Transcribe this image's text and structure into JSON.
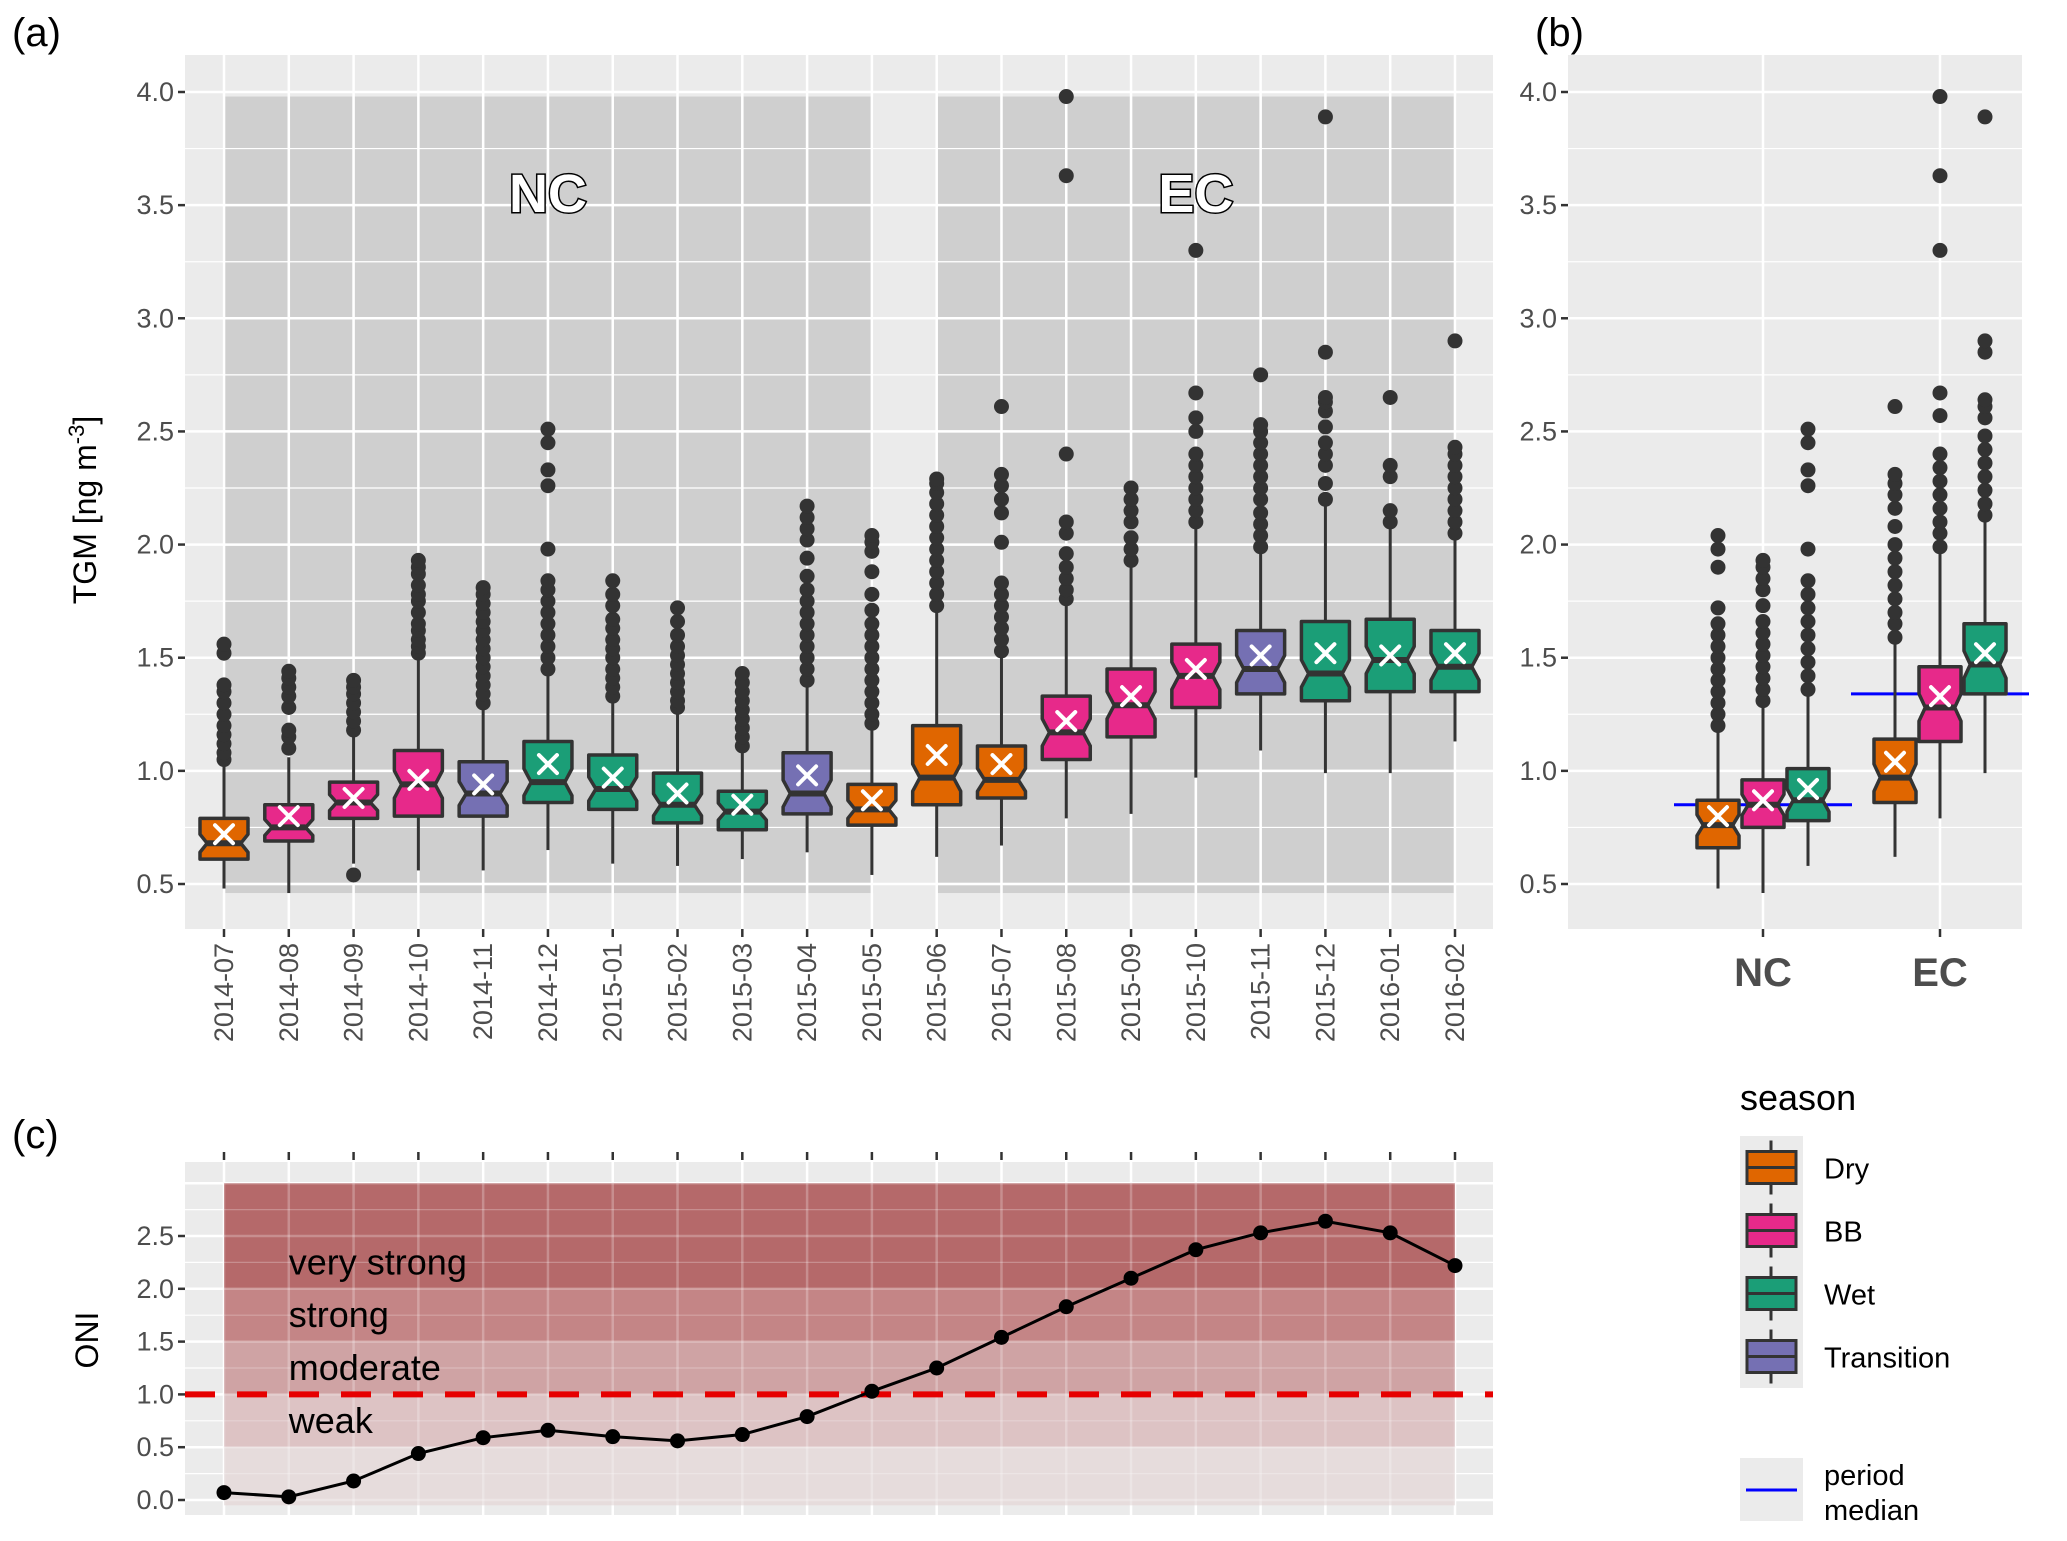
{
  "figure": {
    "panel_a_label": "(a)",
    "panel_b_label": "(b)",
    "panel_c_label": "(c)"
  },
  "colors": {
    "Dry": "#E06600",
    "BB": "#E7298A",
    "Wet": "#1B9E77",
    "Transition": "#7570B3",
    "panel_bg": "#EBEBEB",
    "period_shade": "#CFCFCF",
    "grid": "#FFFFFF",
    "outlier": "#333333",
    "mean_marker": "#FFFFFF",
    "period_median": "#0000FF",
    "threshold_line": "#E60000",
    "oni_line": "#000000",
    "band_very_strong": "#B5696A",
    "band_strong": "#C48586",
    "band_moderate": "#CFA3A4",
    "band_weak": "#DDC3C4",
    "band_base": "#E6DCDC"
  },
  "chart_data": [
    {
      "id": "a",
      "type": "boxplot",
      "notched": true,
      "title": "",
      "xlabel": "",
      "ylabel": "TGM [ng m",
      "ylabel_superscript": "-3",
      "ylabel_suffix": "]",
      "ylim": [
        0.33,
        4.16
      ],
      "yticks": [
        0.5,
        1.0,
        1.5,
        2.0,
        2.5,
        3.0,
        3.5,
        4.0
      ],
      "ytick_labels": [
        "0.5",
        "1.0",
        "1.5",
        "2.0",
        "2.5",
        "3.0",
        "3.5",
        "4.0"
      ],
      "periods": [
        {
          "label": "NC",
          "from": "2014-07",
          "to": "2015-05",
          "ymin": 0.46,
          "ymax": 3.98
        },
        {
          "label": "EC",
          "from": "2015-06",
          "to": "2016-02",
          "ymin": 0.46,
          "ymax": 3.98
        }
      ],
      "categories": [
        "2014-07",
        "2014-08",
        "2014-09",
        "2014-10",
        "2014-11",
        "2014-12",
        "2015-01",
        "2015-02",
        "2015-03",
        "2015-04",
        "2015-05",
        "2015-06",
        "2015-07",
        "2015-08",
        "2015-09",
        "2015-10",
        "2015-11",
        "2015-12",
        "2016-01",
        "2016-02"
      ],
      "boxes": [
        {
          "season": "Dry",
          "wlo": 0.48,
          "q1": 0.61,
          "med": 0.68,
          "q3": 0.79,
          "whi": 1.03,
          "mean": 0.72,
          "outliers": [
            1.05,
            1.08,
            1.12,
            1.16,
            1.2,
            1.25,
            1.3,
            1.35,
            1.38,
            1.52,
            1.56
          ]
        },
        {
          "season": "BB",
          "wlo": 0.46,
          "q1": 0.69,
          "med": 0.75,
          "q3": 0.85,
          "whi": 1.06,
          "mean": 0.8,
          "outliers": [
            1.1,
            1.15,
            1.18,
            1.28,
            1.33,
            1.37,
            1.41,
            1.44
          ]
        },
        {
          "season": "BB",
          "wlo": 0.59,
          "q1": 0.79,
          "med": 0.86,
          "q3": 0.95,
          "whi": 1.15,
          "mean": 0.88,
          "outliers": [
            0.54,
            1.18,
            1.22,
            1.26,
            1.3,
            1.34,
            1.37,
            1.4
          ]
        },
        {
          "season": "BB",
          "wlo": 0.56,
          "q1": 0.8,
          "med": 0.94,
          "q3": 1.09,
          "whi": 1.5,
          "mean": 0.96,
          "outliers": [
            1.52,
            1.55,
            1.58,
            1.62,
            1.65,
            1.7,
            1.75,
            1.78,
            1.82,
            1.87,
            1.9,
            1.93
          ]
        },
        {
          "season": "Transition",
          "wlo": 0.56,
          "q1": 0.8,
          "med": 0.9,
          "q3": 1.04,
          "whi": 1.27,
          "mean": 0.94,
          "outliers": [
            1.3,
            1.34,
            1.38,
            1.42,
            1.46,
            1.5,
            1.54,
            1.58,
            1.62,
            1.66,
            1.7,
            1.74,
            1.78,
            1.81
          ]
        },
        {
          "season": "Wet",
          "wlo": 0.65,
          "q1": 0.86,
          "med": 0.95,
          "q3": 1.13,
          "whi": 1.42,
          "mean": 1.03,
          "outliers": [
            1.45,
            1.5,
            1.55,
            1.6,
            1.65,
            1.7,
            1.75,
            1.8,
            1.84,
            1.98,
            2.26,
            2.33,
            2.45,
            2.51
          ]
        },
        {
          "season": "Wet",
          "wlo": 0.59,
          "q1": 0.83,
          "med": 0.92,
          "q3": 1.07,
          "whi": 1.3,
          "mean": 0.97,
          "outliers": [
            1.33,
            1.37,
            1.41,
            1.45,
            1.5,
            1.54,
            1.58,
            1.63,
            1.67,
            1.73,
            1.78,
            1.84
          ]
        },
        {
          "season": "Wet",
          "wlo": 0.58,
          "q1": 0.77,
          "med": 0.85,
          "q3": 0.99,
          "whi": 1.25,
          "mean": 0.9,
          "outliers": [
            1.28,
            1.31,
            1.35,
            1.39,
            1.43,
            1.47,
            1.51,
            1.55,
            1.6,
            1.66,
            1.72
          ]
        },
        {
          "season": "Wet",
          "wlo": 0.61,
          "q1": 0.74,
          "med": 0.82,
          "q3": 0.91,
          "whi": 1.08,
          "mean": 0.85,
          "outliers": [
            1.11,
            1.15,
            1.19,
            1.23,
            1.27,
            1.31,
            1.35,
            1.39,
            1.43
          ]
        },
        {
          "season": "Transition",
          "wlo": 0.64,
          "q1": 0.81,
          "med": 0.9,
          "q3": 1.08,
          "whi": 1.37,
          "mean": 0.98,
          "outliers": [
            1.4,
            1.45,
            1.5,
            1.55,
            1.6,
            1.65,
            1.7,
            1.75,
            1.8,
            1.86,
            1.94,
            2.02,
            2.07,
            2.12,
            2.17
          ]
        },
        {
          "season": "Dry",
          "wlo": 0.54,
          "q1": 0.76,
          "med": 0.83,
          "q3": 0.94,
          "whi": 1.18,
          "mean": 0.87,
          "outliers": [
            1.21,
            1.25,
            1.3,
            1.35,
            1.4,
            1.45,
            1.5,
            1.55,
            1.6,
            1.65,
            1.71,
            1.78,
            1.88,
            1.97,
            2.01,
            2.04
          ]
        },
        {
          "season": "Dry",
          "wlo": 0.62,
          "q1": 0.85,
          "med": 0.97,
          "q3": 1.2,
          "whi": 1.7,
          "mean": 1.07,
          "outliers": [
            1.73,
            1.78,
            1.83,
            1.88,
            1.93,
            1.98,
            2.03,
            2.08,
            2.13,
            2.18,
            2.23,
            2.27,
            2.29
          ]
        },
        {
          "season": "Dry",
          "wlo": 0.67,
          "q1": 0.88,
          "med": 0.96,
          "q3": 1.11,
          "whi": 1.5,
          "mean": 1.03,
          "outliers": [
            1.53,
            1.58,
            1.63,
            1.68,
            1.73,
            1.78,
            1.83,
            2.01,
            2.14,
            2.2,
            2.26,
            2.31,
            2.61
          ]
        },
        {
          "season": "BB",
          "wlo": 0.79,
          "q1": 1.05,
          "med": 1.17,
          "q3": 1.33,
          "whi": 1.73,
          "mean": 1.22,
          "outliers": [
            1.76,
            1.8,
            1.85,
            1.9,
            1.96,
            2.05,
            2.1,
            2.4,
            3.63,
            3.98
          ]
        },
        {
          "season": "BB",
          "wlo": 0.81,
          "q1": 1.15,
          "med": 1.29,
          "q3": 1.45,
          "whi": 1.9,
          "mean": 1.33,
          "outliers": [
            1.93,
            1.98,
            2.03,
            2.1,
            2.15,
            2.2,
            2.25
          ]
        },
        {
          "season": "BB",
          "wlo": 0.97,
          "q1": 1.28,
          "med": 1.42,
          "q3": 1.56,
          "whi": 2.07,
          "mean": 1.45,
          "outliers": [
            2.1,
            2.15,
            2.2,
            2.25,
            2.3,
            2.35,
            2.4,
            2.5,
            2.56,
            2.67,
            3.3
          ]
        },
        {
          "season": "Transition",
          "wlo": 1.09,
          "q1": 1.34,
          "med": 1.45,
          "q3": 1.62,
          "whi": 1.96,
          "mean": 1.51,
          "outliers": [
            1.99,
            2.04,
            2.09,
            2.14,
            2.2,
            2.25,
            2.3,
            2.35,
            2.4,
            2.45,
            2.5,
            2.53,
            2.75
          ]
        },
        {
          "season": "Wet",
          "wlo": 0.99,
          "q1": 1.31,
          "med": 1.43,
          "q3": 1.66,
          "whi": 2.17,
          "mean": 1.52,
          "outliers": [
            2.2,
            2.27,
            2.35,
            2.4,
            2.45,
            2.52,
            2.59,
            2.63,
            2.65,
            2.85,
            3.89
          ]
        },
        {
          "season": "Wet",
          "wlo": 0.99,
          "q1": 1.35,
          "med": 1.49,
          "q3": 1.67,
          "whi": 2.07,
          "mean": 1.51,
          "outliers": [
            2.1,
            2.15,
            2.3,
            2.35,
            2.65
          ]
        },
        {
          "season": "Wet",
          "wlo": 1.13,
          "q1": 1.35,
          "med": 1.46,
          "q3": 1.62,
          "whi": 2.02,
          "mean": 1.52,
          "outliers": [
            2.05,
            2.1,
            2.15,
            2.2,
            2.25,
            2.3,
            2.35,
            2.4,
            2.43,
            2.9
          ]
        }
      ]
    },
    {
      "id": "b",
      "type": "boxplot",
      "notched": true,
      "title": "",
      "xlabel": "",
      "ylabel": "",
      "ylim": [
        0.33,
        4.16
      ],
      "yticks": [
        0.5,
        1.0,
        1.5,
        2.0,
        2.5,
        3.0,
        3.5,
        4.0
      ],
      "ytick_labels": [
        "0.5",
        "1.0",
        "1.5",
        "2.0",
        "2.5",
        "3.0",
        "3.5",
        "4.0"
      ],
      "categories": [
        "NC",
        "EC"
      ],
      "period_medians": [
        0.85,
        1.34
      ],
      "groups": [
        {
          "category": "NC",
          "boxes": [
            {
              "season": "Dry",
              "wlo": 0.48,
              "q1": 0.66,
              "med": 0.76,
              "q3": 0.87,
              "whi": 1.17,
              "mean": 0.8,
              "outliers": [
                1.2,
                1.25,
                1.3,
                1.35,
                1.4,
                1.45,
                1.5,
                1.55,
                1.6,
                1.65,
                1.72,
                1.9,
                1.98,
                2.04
              ]
            },
            {
              "season": "BB",
              "wlo": 0.46,
              "q1": 0.75,
              "med": 0.85,
              "q3": 0.96,
              "whi": 1.28,
              "mean": 0.87,
              "outliers": [
                1.31,
                1.36,
                1.41,
                1.46,
                1.51,
                1.56,
                1.61,
                1.66,
                1.73,
                1.8,
                1.85,
                1.9,
                1.93
              ]
            },
            {
              "season": "Wet",
              "wlo": 0.58,
              "q1": 0.78,
              "med": 0.87,
              "q3": 1.01,
              "whi": 1.33,
              "mean": 0.92,
              "outliers": [
                1.36,
                1.42,
                1.48,
                1.54,
                1.6,
                1.66,
                1.72,
                1.78,
                1.84,
                1.98,
                2.26,
                2.33,
                2.45,
                2.51
              ]
            }
          ]
        },
        {
          "category": "EC",
          "boxes": [
            {
              "season": "Dry",
              "wlo": 0.62,
              "q1": 0.86,
              "med": 0.97,
              "q3": 1.14,
              "whi": 1.56,
              "mean": 1.04,
              "outliers": [
                1.59,
                1.65,
                1.7,
                1.76,
                1.82,
                1.88,
                1.94,
                2.0,
                2.08,
                2.16,
                2.22,
                2.27,
                2.31,
                2.61
              ]
            },
            {
              "season": "BB",
              "wlo": 0.79,
              "q1": 1.13,
              "med": 1.28,
              "q3": 1.46,
              "whi": 1.96,
              "mean": 1.33,
              "outliers": [
                1.99,
                2.05,
                2.1,
                2.16,
                2.22,
                2.28,
                2.34,
                2.4,
                2.57,
                2.67,
                3.3,
                3.63,
                3.98
              ]
            },
            {
              "season": "Wet",
              "wlo": 0.99,
              "q1": 1.34,
              "med": 1.47,
              "q3": 1.65,
              "whi": 2.1,
              "mean": 1.52,
              "outliers": [
                2.13,
                2.18,
                2.24,
                2.3,
                2.36,
                2.42,
                2.48,
                2.56,
                2.61,
                2.64,
                2.85,
                2.9,
                3.89
              ]
            }
          ]
        }
      ]
    },
    {
      "id": "c",
      "type": "line",
      "title": "",
      "xlabel": "",
      "ylabel": "ONI",
      "ylim": [
        -0.1,
        3.1
      ],
      "yticks": [
        0.0,
        0.5,
        1.0,
        1.5,
        2.0,
        2.5
      ],
      "ytick_labels": [
        "0.0",
        "0.5",
        "1.0",
        "1.5",
        "2.0",
        "2.5"
      ],
      "x": [
        "2014-07",
        "2014-08",
        "2014-09",
        "2014-10",
        "2014-11",
        "2014-12",
        "2015-01",
        "2015-02",
        "2015-03",
        "2015-04",
        "2015-05",
        "2015-06",
        "2015-07",
        "2015-08",
        "2015-09",
        "2015-10",
        "2015-11",
        "2015-12",
        "2016-01",
        "2016-02"
      ],
      "series": [
        {
          "name": "ONI",
          "values": [
            0.07,
            0.03,
            0.18,
            0.44,
            0.59,
            0.66,
            0.6,
            0.56,
            0.62,
            0.79,
            1.03,
            1.25,
            1.54,
            1.83,
            2.1,
            2.37,
            2.53,
            2.64,
            2.53,
            2.22
          ]
        }
      ],
      "threshold": 1.0,
      "bands": [
        {
          "label": "very strong",
          "from": 2.0,
          "to": 3.0
        },
        {
          "label": "strong",
          "from": 1.5,
          "to": 2.0
        },
        {
          "label": "moderate",
          "from": 1.0,
          "to": 1.5
        },
        {
          "label": "weak",
          "from": 0.5,
          "to": 1.0
        },
        {
          "label": "",
          "from": -0.05,
          "to": 0.5
        }
      ]
    }
  ],
  "legend": {
    "title": "season",
    "items": [
      {
        "label": "Dry",
        "key": "Dry"
      },
      {
        "label": "BB",
        "key": "BB"
      },
      {
        "label": "Wet",
        "key": "Wet"
      },
      {
        "label": "Transition",
        "key": "Transition"
      }
    ],
    "median_line_label_1": "period",
    "median_line_label_2": "median"
  }
}
